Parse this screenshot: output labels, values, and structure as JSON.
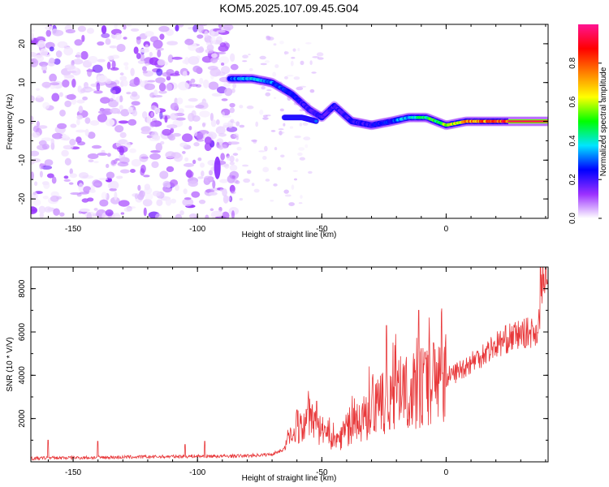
{
  "title": "KOM5.2025.107.09.45.G04",
  "chart_data": [
    {
      "type": "heatmap",
      "xlabel": "Height of straight line (km)",
      "ylabel": "Frequency (Hz)",
      "xlim": [
        -167,
        41
      ],
      "ylim": [
        -25,
        25
      ],
      "x_ticks": [
        -150,
        -100,
        -50,
        0
      ],
      "y_ticks": [
        -20,
        -10,
        0,
        10,
        20
      ],
      "colorbar": {
        "label": "Normalized spectral amplitude",
        "range": [
          0,
          1
        ],
        "ticks": [
          "0.0",
          "0.2",
          "0.4",
          "0.6",
          "0.8"
        ],
        "colors": [
          "#ffffff",
          "#9b30ff",
          "#0000ff",
          "#00e5ff",
          "#00ff00",
          "#ffff00",
          "#ff8000",
          "#ff0000",
          "#ff1493"
        ]
      },
      "ridge": [
        {
          "x": -87,
          "y": 11,
          "amp": 0.3
        },
        {
          "x": -78,
          "y": 11,
          "amp": 0.38
        },
        {
          "x": -70,
          "y": 10,
          "amp": 0.34
        },
        {
          "x": -62,
          "y": 7,
          "amp": 0.26
        },
        {
          "x": -55,
          "y": 3,
          "amp": 0.22
        },
        {
          "x": -50,
          "y": 1,
          "amp": 0.2
        },
        {
          "x": -45,
          "y": 4,
          "amp": 0.22
        },
        {
          "x": -38,
          "y": 0,
          "amp": 0.22
        },
        {
          "x": -30,
          "y": -1,
          "amp": 0.24
        },
        {
          "x": -22,
          "y": 0,
          "amp": 0.3
        },
        {
          "x": -15,
          "y": 1,
          "amp": 0.4
        },
        {
          "x": -8,
          "y": 1,
          "amp": 0.48
        },
        {
          "x": 0,
          "y": -1,
          "amp": 0.62
        },
        {
          "x": 8,
          "y": 0,
          "amp": 0.75
        },
        {
          "x": 20,
          "y": 0,
          "amp": 0.88
        },
        {
          "x": 41,
          "y": 0,
          "amp": 1.0
        }
      ],
      "second_branch": [
        {
          "x": -65,
          "y": 1
        },
        {
          "x": -58,
          "y": 1
        },
        {
          "x": -52,
          "y": 0
        }
      ]
    },
    {
      "type": "line",
      "xlabel": "Height of straight line (km)",
      "ylabel": "SNR (10 * V/V)",
      "xlim": [
        -167,
        41
      ],
      "ylim": [
        0,
        9000
      ],
      "x_ticks": [
        -150,
        -100,
        -50,
        0
      ],
      "y_ticks": [
        2000,
        4000,
        6000,
        8000
      ],
      "series": [
        {
          "name": "SNR",
          "color": "#e8383a",
          "x": [
            -167,
            -160,
            -140,
            -120,
            -100,
            -90,
            -80,
            -70,
            -65,
            -60,
            -55,
            -50,
            -45,
            -40,
            -35,
            -30,
            -25,
            -20,
            -15,
            -10,
            -5,
            0,
            5,
            10,
            15,
            20,
            25,
            30,
            35,
            37,
            39,
            41
          ],
          "y": [
            150,
            180,
            200,
            230,
            260,
            260,
            280,
            350,
            600,
            1500,
            1900,
            1300,
            900,
            1500,
            1800,
            2300,
            2700,
            3000,
            3200,
            3500,
            3600,
            3900,
            4200,
            4600,
            5000,
            5400,
            5700,
            5900,
            6000,
            6100,
            8500,
            8200
          ],
          "spikes": [
            {
              "x": -160,
              "y": 1000
            },
            {
              "x": -140,
              "y": 950
            },
            {
              "x": -105,
              "y": 800
            },
            {
              "x": -97,
              "y": 950
            },
            {
              "x": -60,
              "y": 2400
            },
            {
              "x": -52,
              "y": 2800
            },
            {
              "x": -24,
              "y": 6300
            },
            {
              "x": -11,
              "y": 7000
            },
            {
              "x": -5,
              "y": 5500
            },
            {
              "x": 38,
              "y": 9000
            }
          ]
        }
      ]
    }
  ]
}
